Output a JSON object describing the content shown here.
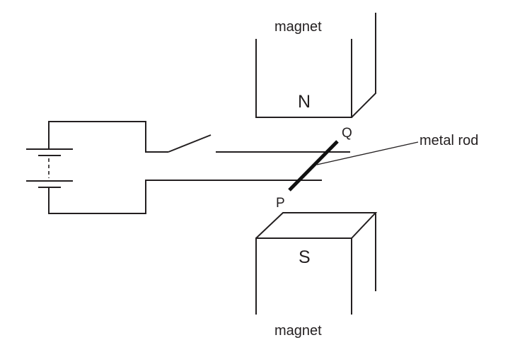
{
  "labels": {
    "magnet_top": "magnet",
    "magnet_bottom": "magnet",
    "pole_north": "N",
    "pole_south": "S",
    "end_q": "Q",
    "end_p": "P",
    "rod": "metal rod"
  },
  "colors": {
    "line": "#231f20",
    "background": "#ffffff"
  }
}
